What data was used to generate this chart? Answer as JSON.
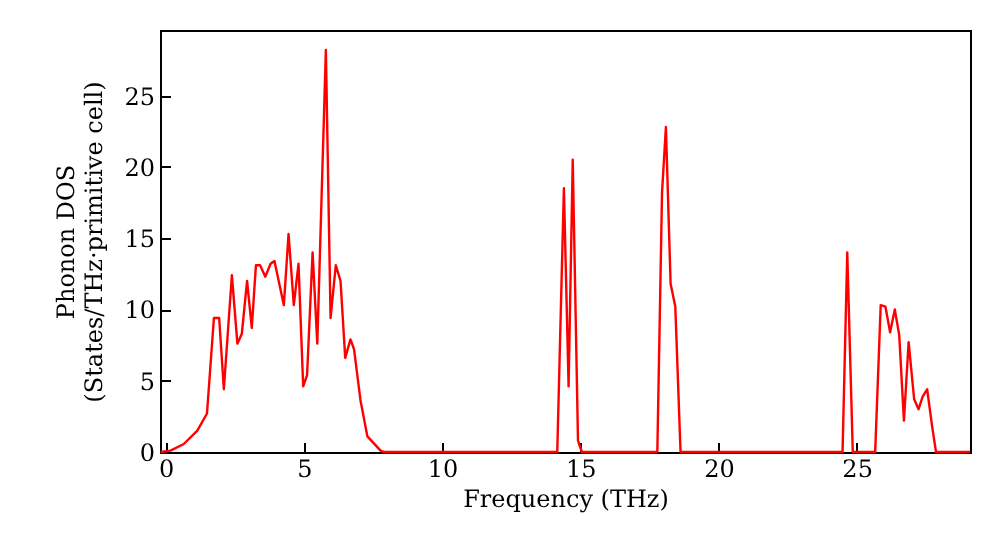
{
  "chart_data": {
    "type": "line",
    "xlabel": "Frequency (THz)",
    "ylabel": "Phonon DOS\n(States/THz·primitive cell)",
    "x": [
      -0.18,
      0.18,
      0.66,
      1.15,
      1.5,
      1.75,
      1.94,
      2.11,
      2.4,
      2.6,
      2.76,
      2.95,
      3.12,
      3.27,
      3.42,
      3.61,
      3.8,
      3.94,
      4.28,
      4.45,
      4.64,
      4.81,
      4.98,
      5.12,
      5.32,
      5.49,
      5.8,
      5.97,
      6.16,
      6.33,
      6.5,
      6.69,
      6.82,
      7.05,
      7.3,
      7.78,
      7.9,
      14.17,
      14.41,
      14.58,
      14.73,
      14.92,
      15.06,
      17.79,
      17.96,
      18.1,
      18.27,
      18.44,
      18.63,
      24.49,
      24.66,
      24.86,
      25.67,
      25.87,
      26.04,
      26.21,
      26.38,
      26.54,
      26.71,
      26.88,
      27.08,
      27.24,
      27.39,
      27.55,
      27.73,
      27.87,
      29.1
    ],
    "series": [
      {
        "color": "#ff0000",
        "values": [
          0,
          0.1,
          0.56,
          1.5,
          2.7,
          9.4,
          9.4,
          4.4,
          12.4,
          7.6,
          8.3,
          12.0,
          8.7,
          13.1,
          13.1,
          12.3,
          13.2,
          13.4,
          10.3,
          15.3,
          10.3,
          13.2,
          4.6,
          5.4,
          14.0,
          7.6,
          28.2,
          9.4,
          13.1,
          12.0,
          6.6,
          7.9,
          7.2,
          3.65,
          1.1,
          0.1,
          0,
          0,
          18.5,
          4.6,
          20.5,
          0.8,
          0,
          0,
          18.2,
          22.8,
          11.8,
          10.2,
          0,
          0,
          14.0,
          0,
          0,
          10.3,
          10.2,
          8.4,
          10.0,
          8.2,
          2.2,
          7.7,
          3.7,
          3.0,
          3.9,
          4.4,
          1.8,
          0,
          0
        ]
      }
    ],
    "xlim": [
      -0.2,
      29.1
    ],
    "ylim": [
      0,
      29.6
    ],
    "xticks": [
      0,
      5,
      10,
      15,
      20,
      25
    ],
    "yticks": [
      0,
      5,
      10,
      15,
      20,
      25
    ],
    "grid": false,
    "line_style": "solid",
    "marker": "none"
  }
}
